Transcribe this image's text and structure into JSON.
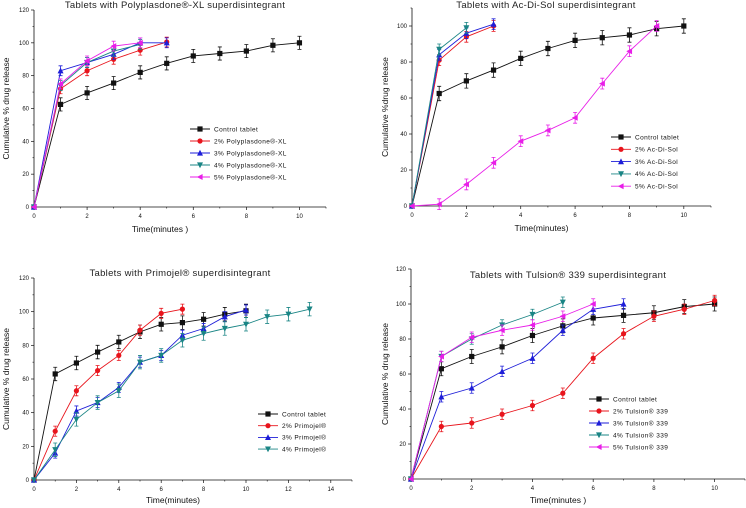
{
  "colors": {
    "control": "#111111",
    "s2": "#e8141c",
    "s3": "#1e1ed8",
    "s4": "#1a8585",
    "s5": "#e81ee8"
  },
  "chart_data": [
    {
      "type": "line",
      "title": "Tablets with  Polyplasdone®-XL superdisintegrant",
      "xlabel": "Time(minutes )",
      "ylabel": "Cumulative % drug release",
      "xlim": [
        0,
        11
      ],
      "ylim": [
        0,
        120
      ],
      "xticks": [
        0,
        2,
        4,
        6,
        8,
        10
      ],
      "yticks": [
        0,
        20,
        40,
        60,
        80,
        100,
        120
      ],
      "legend_position": "center-right",
      "series": [
        {
          "name": "Control tablet",
          "marker": "square",
          "color": "control",
          "x": [
            0,
            1,
            2,
            3,
            4,
            5,
            6,
            7,
            8,
            9,
            10
          ],
          "y": [
            0,
            62.5,
            69.5,
            75.5,
            82,
            87.5,
            92,
            93.5,
            95,
            98.5,
            100
          ],
          "yerr": 4
        },
        {
          "name": "2%  Polyplasdone®-XL",
          "marker": "circle",
          "color": "s2",
          "x": [
            0,
            1,
            2,
            3,
            4,
            5
          ],
          "y": [
            0,
            72,
            83,
            90,
            95.5,
            100.5
          ],
          "yerr": 3
        },
        {
          "name": "3%  Polyplasdone®-XL",
          "marker": "triangle-up",
          "color": "s3",
          "x": [
            0,
            1,
            2,
            3,
            4,
            5
          ],
          "y": [
            0,
            83,
            88,
            93,
            100,
            100
          ],
          "yerr": 3
        },
        {
          "name": "4%  Polyplasdone®-XL",
          "marker": "triangle-down",
          "color": "s4",
          "x": [
            0,
            1,
            2,
            3,
            4
          ],
          "y": [
            0,
            74,
            88,
            95,
            99
          ],
          "yerr": 3
        },
        {
          "name": "5%  Polyplasdone®-XL",
          "marker": "triangle-left",
          "color": "s5",
          "x": [
            0,
            1,
            2,
            3,
            4
          ],
          "y": [
            0,
            75,
            89,
            98,
            100
          ],
          "yerr": 3
        }
      ]
    },
    {
      "type": "line",
      "title": "Tablets with  Ac-Di-Sol superdisintegrant",
      "xlabel": "Time(minutes)",
      "ylabel": "Cumulative %drug release",
      "xlim": [
        0,
        11
      ],
      "ylim": [
        0,
        110
      ],
      "xticks": [
        0,
        2,
        4,
        6,
        8,
        10
      ],
      "yticks": [
        0,
        20,
        40,
        60,
        80,
        100
      ],
      "legend_position": "center-right",
      "series": [
        {
          "name": "Control tablet",
          "marker": "square",
          "color": "control",
          "x": [
            0,
            1,
            2,
            3,
            4,
            5,
            6,
            7,
            8,
            9,
            10
          ],
          "y": [
            0,
            62.5,
            69.5,
            75.5,
            82,
            87.5,
            92,
            93.5,
            95,
            98.5,
            100
          ],
          "yerr": 4
        },
        {
          "name": "2% Ac-Di-Sol",
          "marker": "circle",
          "color": "s2",
          "x": [
            0,
            1,
            2,
            3
          ],
          "y": [
            0,
            81,
            94,
            100
          ],
          "yerr": 3
        },
        {
          "name": "3% Ac-Di-Sol",
          "marker": "triangle-up",
          "color": "s3",
          "x": [
            0,
            1,
            2,
            3
          ],
          "y": [
            0,
            84,
            96,
            101
          ],
          "yerr": 3
        },
        {
          "name": "4% Ac-Di-Sol",
          "marker": "triangle-down",
          "color": "s4",
          "x": [
            0,
            1,
            2
          ],
          "y": [
            0,
            87,
            99
          ],
          "yerr": 3
        },
        {
          "name": "5% Ac-Di-Sol",
          "marker": "triangle-left",
          "color": "s5",
          "x": [
            0,
            1,
            2,
            3,
            4,
            5,
            6,
            7,
            8,
            9
          ],
          "y": [
            0,
            1,
            12,
            24,
            36,
            42,
            49,
            68,
            86,
            100
          ],
          "yerr": 3
        }
      ]
    },
    {
      "type": "line",
      "title": "Tablets with  Primojel® superdisintegrant",
      "xlabel": "Time(minutes)",
      "ylabel": "Cumulative % drug release",
      "xlim": [
        0,
        15
      ],
      "ylim": [
        0,
        120
      ],
      "xticks": [
        0,
        2,
        4,
        6,
        8,
        10,
        12,
        14
      ],
      "yticks": [
        0,
        20,
        40,
        60,
        80,
        100,
        120
      ],
      "legend_position": "center-right",
      "series": [
        {
          "name": "Control tablet",
          "marker": "square",
          "color": "control",
          "x": [
            0,
            1,
            2,
            3,
            4,
            5,
            6,
            7,
            8,
            9,
            10
          ],
          "y": [
            0,
            63,
            69.5,
            76,
            82,
            88,
            92.5,
            93.5,
            95.5,
            98.5,
            100.5
          ],
          "yerr": 4
        },
        {
          "name": "2%  Primojel®",
          "marker": "circle",
          "color": "s2",
          "x": [
            0,
            1,
            2,
            3,
            4,
            5,
            6,
            7
          ],
          "y": [
            0,
            29,
            53,
            65,
            74,
            89,
            99,
            101.5
          ],
          "yerr": 3
        },
        {
          "name": "3%  Primojel®",
          "marker": "triangle-up",
          "color": "s3",
          "x": [
            0,
            1,
            2,
            3,
            4,
            5,
            6,
            7,
            8,
            9,
            10
          ],
          "y": [
            0,
            16,
            41,
            46,
            55,
            70,
            74,
            86,
            90,
            97,
            101
          ],
          "yerr": 3
        },
        {
          "name": "4%  Primojel®",
          "marker": "triangle-down",
          "color": "s4",
          "x": [
            0,
            1,
            2,
            3,
            4,
            5,
            6,
            7,
            8,
            9,
            10,
            11,
            12,
            13
          ],
          "y": [
            0,
            18,
            36,
            46,
            53,
            70,
            74,
            83,
            87,
            90,
            92.5,
            97,
            98.5,
            101.5
          ],
          "yerr": 4
        }
      ]
    },
    {
      "type": "line",
      "title": "Tablets with  Tulsion® 339  superdisintegrant",
      "xlabel": "Time(minutes )",
      "ylabel": "Cumulative % drug release",
      "xlim": [
        0,
        11
      ],
      "ylim": [
        0,
        120
      ],
      "xticks": [
        0,
        2,
        4,
        6,
        8,
        10
      ],
      "yticks": [
        0,
        20,
        40,
        60,
        80,
        100,
        120
      ],
      "legend_position": "center-right",
      "series": [
        {
          "name": "Control tablet",
          "marker": "square",
          "color": "control",
          "x": [
            0,
            1,
            2,
            3,
            4,
            5,
            6,
            7,
            8,
            9,
            10
          ],
          "y": [
            0,
            63,
            70,
            75.5,
            82,
            87.5,
            92,
            93.5,
            95,
            98.5,
            100
          ],
          "yerr": 4
        },
        {
          "name": "2% Tulsion® 339",
          "marker": "circle",
          "color": "s2",
          "x": [
            0,
            1,
            2,
            3,
            4,
            5,
            6,
            7,
            8,
            9,
            10
          ],
          "y": [
            0,
            30,
            32,
            37,
            42,
            49,
            69,
            83,
            93,
            97,
            102
          ],
          "yerr": 3
        },
        {
          "name": "3% Tulsion® 339",
          "marker": "triangle-up",
          "color": "s3",
          "x": [
            0,
            1,
            2,
            3,
            4,
            5,
            6,
            7
          ],
          "y": [
            0,
            47,
            52,
            61.5,
            69,
            85,
            97,
            100
          ],
          "yerr": 3
        },
        {
          "name": "4% Tulsion® 339",
          "marker": "triangle-down",
          "color": "s4",
          "x": [
            0,
            1,
            2,
            3,
            4,
            5
          ],
          "y": [
            0,
            70,
            80,
            88,
            94,
            101
          ],
          "yerr": 3
        },
        {
          "name": "5% Tulsion® 339",
          "marker": "triangle-left",
          "color": "s5",
          "x": [
            0,
            1,
            2,
            3,
            4,
            5,
            6
          ],
          "y": [
            0,
            70,
            81,
            85,
            88,
            93,
            100
          ],
          "yerr": 3
        }
      ]
    }
  ]
}
